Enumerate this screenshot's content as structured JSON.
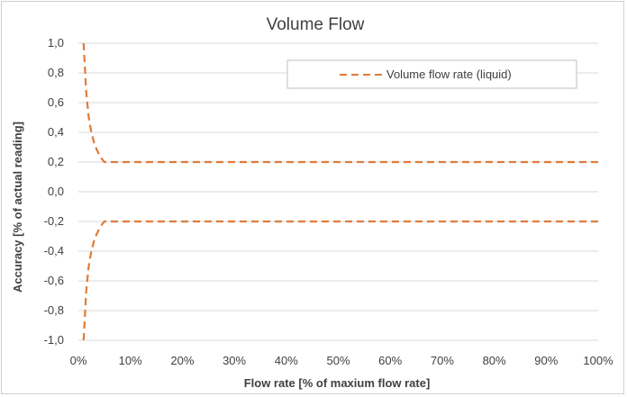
{
  "chart_data": {
    "type": "line",
    "title": "Volume Flow",
    "xlabel": "Flow rate [% of maxium flow rate]",
    "ylabel": "Accuracy  [% of actual reading]",
    "xlim": [
      0,
      100
    ],
    "ylim": [
      -1.0,
      1.0
    ],
    "x_ticks": [
      "0%",
      "10%",
      "20%",
      "30%",
      "40%",
      "50%",
      "60%",
      "70%",
      "80%",
      "90%",
      "100%"
    ],
    "y_ticks": [
      "1,0",
      "0,8",
      "0,6",
      "0,4",
      "0,2",
      "0,0",
      "-0,2",
      "-0,4",
      "-0,6",
      "-0,8",
      "-1,0"
    ],
    "grid": "horizontal",
    "legend": {
      "position": "top-right",
      "entries": [
        "Volume flow rate (liquid)"
      ]
    },
    "series": [
      {
        "name": "Volume flow rate (liquid)",
        "color": "#e07b39",
        "style": "dashed",
        "x": [
          1,
          1.5,
          2,
          2.5,
          3,
          3.5,
          4,
          4.5,
          5,
          6,
          10,
          20,
          30,
          40,
          50,
          60,
          70,
          80,
          90,
          100
        ],
        "y": [
          1.0,
          0.67,
          0.5,
          0.4,
          0.333,
          0.286,
          0.25,
          0.222,
          0.2,
          0.2,
          0.2,
          0.2,
          0.2,
          0.2,
          0.2,
          0.2,
          0.2,
          0.2,
          0.2,
          0.2
        ]
      },
      {
        "name": "",
        "color": "#e07b39",
        "style": "dashed",
        "x": [
          1,
          1.5,
          2,
          2.5,
          3,
          3.5,
          4,
          4.5,
          5,
          6,
          10,
          20,
          30,
          40,
          50,
          60,
          70,
          80,
          90,
          100
        ],
        "y": [
          -1.0,
          -0.67,
          -0.5,
          -0.4,
          -0.333,
          -0.286,
          -0.25,
          -0.222,
          -0.2,
          -0.2,
          -0.2,
          -0.2,
          -0.2,
          -0.2,
          -0.2,
          -0.2,
          -0.2,
          -0.2,
          -0.2,
          -0.2
        ]
      }
    ]
  }
}
